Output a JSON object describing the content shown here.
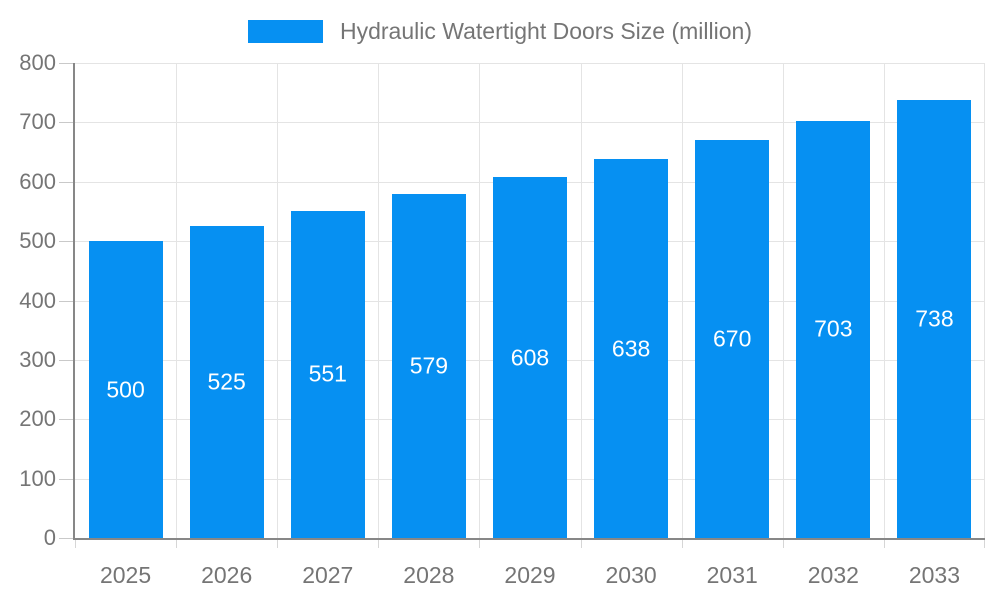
{
  "legend": {
    "label": "Hydraulic Watertight Doors Size (million)",
    "swatch_color": "#0690F2"
  },
  "chart_data": {
    "type": "bar",
    "title": "Hydraulic Watertight Doors Size (million)",
    "categories": [
      "2025",
      "2026",
      "2027",
      "2028",
      "2029",
      "2030",
      "2031",
      "2032",
      "2033"
    ],
    "values": [
      500,
      525,
      551,
      579,
      608,
      638,
      670,
      703,
      738
    ],
    "xlabel": "",
    "ylabel": "",
    "ylim": [
      0,
      800
    ],
    "yticks": [
      0,
      100,
      200,
      300,
      400,
      500,
      600,
      700,
      800
    ],
    "grid": true,
    "legend_position": "top",
    "bar_color": "#0690F2",
    "bar_label_color": "#ffffff",
    "axis_line_color": "#878787",
    "grid_color": "#e4e4e4",
    "text_color": "#757575"
  }
}
